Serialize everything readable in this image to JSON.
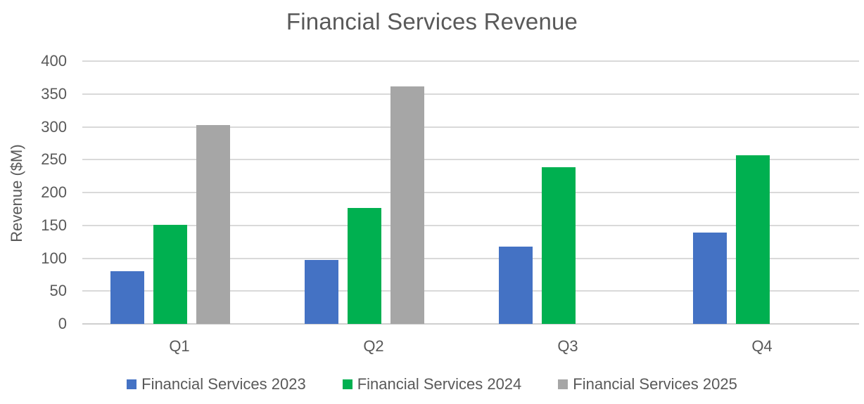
{
  "chart_data": {
    "type": "bar",
    "title": "Financial Services Revenue",
    "xlabel": "",
    "ylabel": "Revenue ($M)",
    "categories": [
      "Q1",
      "Q2",
      "Q3",
      "Q4"
    ],
    "series": [
      {
        "name": "Financial Services 2023",
        "color": "#4472C4",
        "values": [
          80,
          97,
          118,
          139
        ]
      },
      {
        "name": "Financial Services 2024",
        "color": "#00B050",
        "values": [
          151,
          176,
          238,
          257
        ]
      },
      {
        "name": "Financial Services 2025",
        "color": "#A6A6A6",
        "values": [
          303,
          362,
          null,
          null
        ]
      }
    ],
    "ylim": [
      0,
      400
    ],
    "ytick_interval": 50,
    "yticks": [
      0,
      50,
      100,
      150,
      200,
      250,
      300,
      350,
      400
    ],
    "grid": true,
    "legend_position": "bottom"
  },
  "style": {
    "gridline_color": "#d9d9d9",
    "axis_line_color": "#cfcfcf",
    "text_color": "#595959",
    "background": "#ffffff"
  }
}
